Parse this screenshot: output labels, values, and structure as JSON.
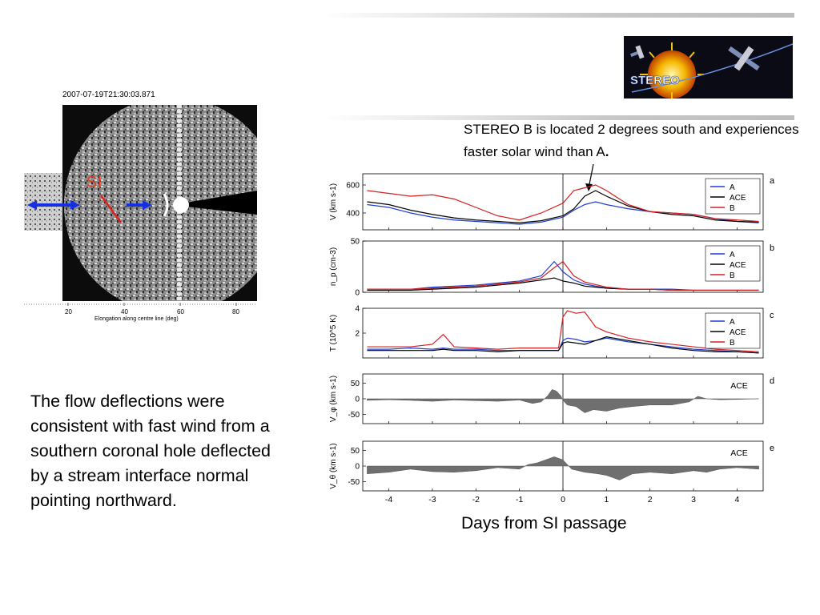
{
  "slide": {
    "note": "STEREO B is located 2 degrees south and experiences faster solar wind than A",
    "note_period": ".",
    "paragraph": "The flow deflections were consistent with fast wind from a southern coronal hole deflected by a stream interface normal pointing northward.",
    "x_caption": "Days from SI passage",
    "logo_text": "STEREO"
  },
  "image": {
    "timestamp": "2007-07-19T21:30:03.871",
    "si_label": "SI",
    "x_ticks": [
      "20",
      "40",
      "60",
      "80"
    ],
    "xlabel": "Elongation along centre line (deg)"
  },
  "colors": {
    "A": "#1f3fd0",
    "ACE": "#000000",
    "B": "#d42020",
    "fill": "#6f6f6f",
    "si_label": "#e03c20",
    "arrow": "#1530e0"
  },
  "chart_data": {
    "type": "line",
    "xlim": [
      -4.6,
      4.6
    ],
    "x_ticks": [
      -4,
      -3,
      -2,
      -1,
      0,
      1,
      2,
      3,
      4
    ],
    "panels": [
      {
        "id": "a",
        "ylabel": "V (km s-1)",
        "ylim": [
          280,
          680
        ],
        "yticks": [
          400,
          600
        ],
        "legend": [
          "A",
          "ACE",
          "B"
        ],
        "x": [
          -4.5,
          -4.0,
          -3.5,
          -3.0,
          -2.5,
          -2.0,
          -1.5,
          -1.0,
          -0.5,
          0.0,
          0.25,
          0.5,
          0.75,
          1.0,
          1.5,
          2.0,
          2.5,
          3.0,
          3.5,
          4.0,
          4.5
        ],
        "series": [
          {
            "name": "A",
            "values": [
              460,
              440,
              400,
              370,
              350,
              340,
              330,
              320,
              335,
              370,
              420,
              460,
              480,
              460,
              430,
              410,
              400,
              390,
              360,
              340,
              330
            ]
          },
          {
            "name": "ACE",
            "values": [
              480,
              460,
              420,
              390,
              365,
              350,
              340,
              330,
              345,
              380,
              430,
              520,
              560,
              520,
              450,
              410,
              390,
              380,
              350,
              340,
              335
            ]
          },
          {
            "name": "B",
            "values": [
              560,
              540,
              520,
              530,
              500,
              440,
              380,
              350,
              400,
              470,
              560,
              580,
              600,
              560,
              460,
              410,
              400,
              390,
              360,
              350,
              340
            ]
          }
        ]
      },
      {
        "id": "b",
        "ylabel": "n_p (cm-3)",
        "ylim": [
          0,
          50
        ],
        "yticks": [
          0,
          50
        ],
        "legend": [
          "A",
          "ACE",
          "B"
        ],
        "x": [
          -4.5,
          -4.0,
          -3.5,
          -3.0,
          -2.5,
          -2.0,
          -1.5,
          -1.0,
          -0.5,
          -0.2,
          0.0,
          0.25,
          0.5,
          1.0,
          1.5,
          2.0,
          2.5,
          3.0,
          3.5,
          4.0,
          4.5
        ],
        "series": [
          {
            "name": "A",
            "values": [
              3,
              3,
              3,
              5,
              6,
              7,
              9,
              11,
              16,
              30,
              20,
              12,
              8,
              4,
              3,
              3,
              3,
              2,
              2,
              2,
              2
            ]
          },
          {
            "name": "ACE",
            "values": [
              2,
              2,
              2,
              3,
              4,
              5,
              7,
              9,
              12,
              14,
              11,
              9,
              6,
              4,
              3,
              3,
              2,
              2,
              2,
              2,
              2
            ]
          },
          {
            "name": "B",
            "values": [
              3,
              3,
              3,
              4,
              5,
              6,
              8,
              10,
              14,
              24,
              30,
              16,
              10,
              5,
              3,
              3,
              2,
              2,
              2,
              2,
              2
            ]
          }
        ]
      },
      {
        "id": "c",
        "ylabel": "T (10^5 K)",
        "ylim": [
          0,
          4
        ],
        "yticks": [
          2,
          4
        ],
        "legend": [
          "A",
          "ACE",
          "B"
        ],
        "x": [
          -4.5,
          -4.0,
          -3.5,
          -3.0,
          -2.75,
          -2.5,
          -2.0,
          -1.5,
          -1.0,
          -0.5,
          -0.1,
          0.0,
          0.1,
          0.3,
          0.5,
          0.75,
          1.0,
          1.5,
          2.0,
          2.5,
          3.0,
          3.5,
          4.0,
          4.5
        ],
        "series": [
          {
            "name": "A",
            "values": [
              0.7,
              0.7,
              0.8,
              0.7,
              0.8,
              0.7,
              0.7,
              0.6,
              0.6,
              0.6,
              0.6,
              1.4,
              1.6,
              1.5,
              1.3,
              1.4,
              1.6,
              1.3,
              1.1,
              0.9,
              0.7,
              0.6,
              0.5,
              0.4
            ]
          },
          {
            "name": "ACE",
            "values": [
              0.6,
              0.6,
              0.6,
              0.6,
              0.7,
              0.6,
              0.6,
              0.5,
              0.6,
              0.6,
              0.6,
              1.2,
              1.3,
              1.2,
              1.1,
              1.4,
              1.7,
              1.4,
              1.1,
              0.8,
              0.6,
              0.5,
              0.5,
              0.4
            ]
          },
          {
            "name": "B",
            "values": [
              0.9,
              0.9,
              0.9,
              1.1,
              1.9,
              0.9,
              0.8,
              0.7,
              0.8,
              0.8,
              0.8,
              3.3,
              3.8,
              3.6,
              3.7,
              2.5,
              2.1,
              1.6,
              1.3,
              1.1,
              0.9,
              0.7,
              0.6,
              0.5
            ]
          }
        ]
      },
      {
        "id": "d",
        "ylabel": "V_φ (km s-1)",
        "ylim": [
          -80,
          80
        ],
        "yticks": [
          -50,
          0,
          50
        ],
        "legend": [
          "ACE"
        ],
        "fill": true,
        "x": [
          -4.5,
          -4.0,
          -3.5,
          -3.0,
          -2.5,
          -2.0,
          -1.5,
          -1.0,
          -0.7,
          -0.5,
          -0.35,
          -0.25,
          -0.15,
          -0.05,
          0.0,
          0.1,
          0.3,
          0.5,
          0.7,
          1.0,
          1.3,
          1.6,
          2.0,
          2.5,
          2.9,
          3.1,
          3.3,
          3.6,
          4.0,
          4.5
        ],
        "series": [
          {
            "name": "ACE",
            "values": [
              -5,
              -3,
              -5,
              -8,
              -4,
              -6,
              -8,
              -4,
              -15,
              -10,
              10,
              30,
              25,
              10,
              -5,
              -20,
              -25,
              -45,
              -35,
              -40,
              -30,
              -25,
              -20,
              -20,
              -10,
              8,
              0,
              -3,
              -2,
              0
            ]
          }
        ]
      },
      {
        "id": "e",
        "ylabel": "V_θ (km s-1)",
        "ylim": [
          -80,
          80
        ],
        "yticks": [
          -50,
          0,
          50
        ],
        "legend": [
          "ACE"
        ],
        "fill": true,
        "x": [
          -4.5,
          -4.0,
          -3.5,
          -3.0,
          -2.5,
          -2.0,
          -1.5,
          -1.0,
          -0.8,
          -0.6,
          -0.4,
          -0.2,
          0.0,
          0.2,
          0.5,
          0.8,
          1.0,
          1.3,
          1.6,
          2.0,
          2.5,
          3.0,
          3.3,
          3.6,
          4.0,
          4.5
        ],
        "series": [
          {
            "name": "ACE",
            "values": [
              -25,
              -20,
              -10,
              -18,
              -20,
              -15,
              -5,
              -10,
              5,
              10,
              20,
              30,
              20,
              -10,
              -20,
              -25,
              -30,
              -45,
              -25,
              -20,
              -25,
              -15,
              -20,
              -10,
              -5,
              -10
            ]
          }
        ]
      }
    ]
  }
}
